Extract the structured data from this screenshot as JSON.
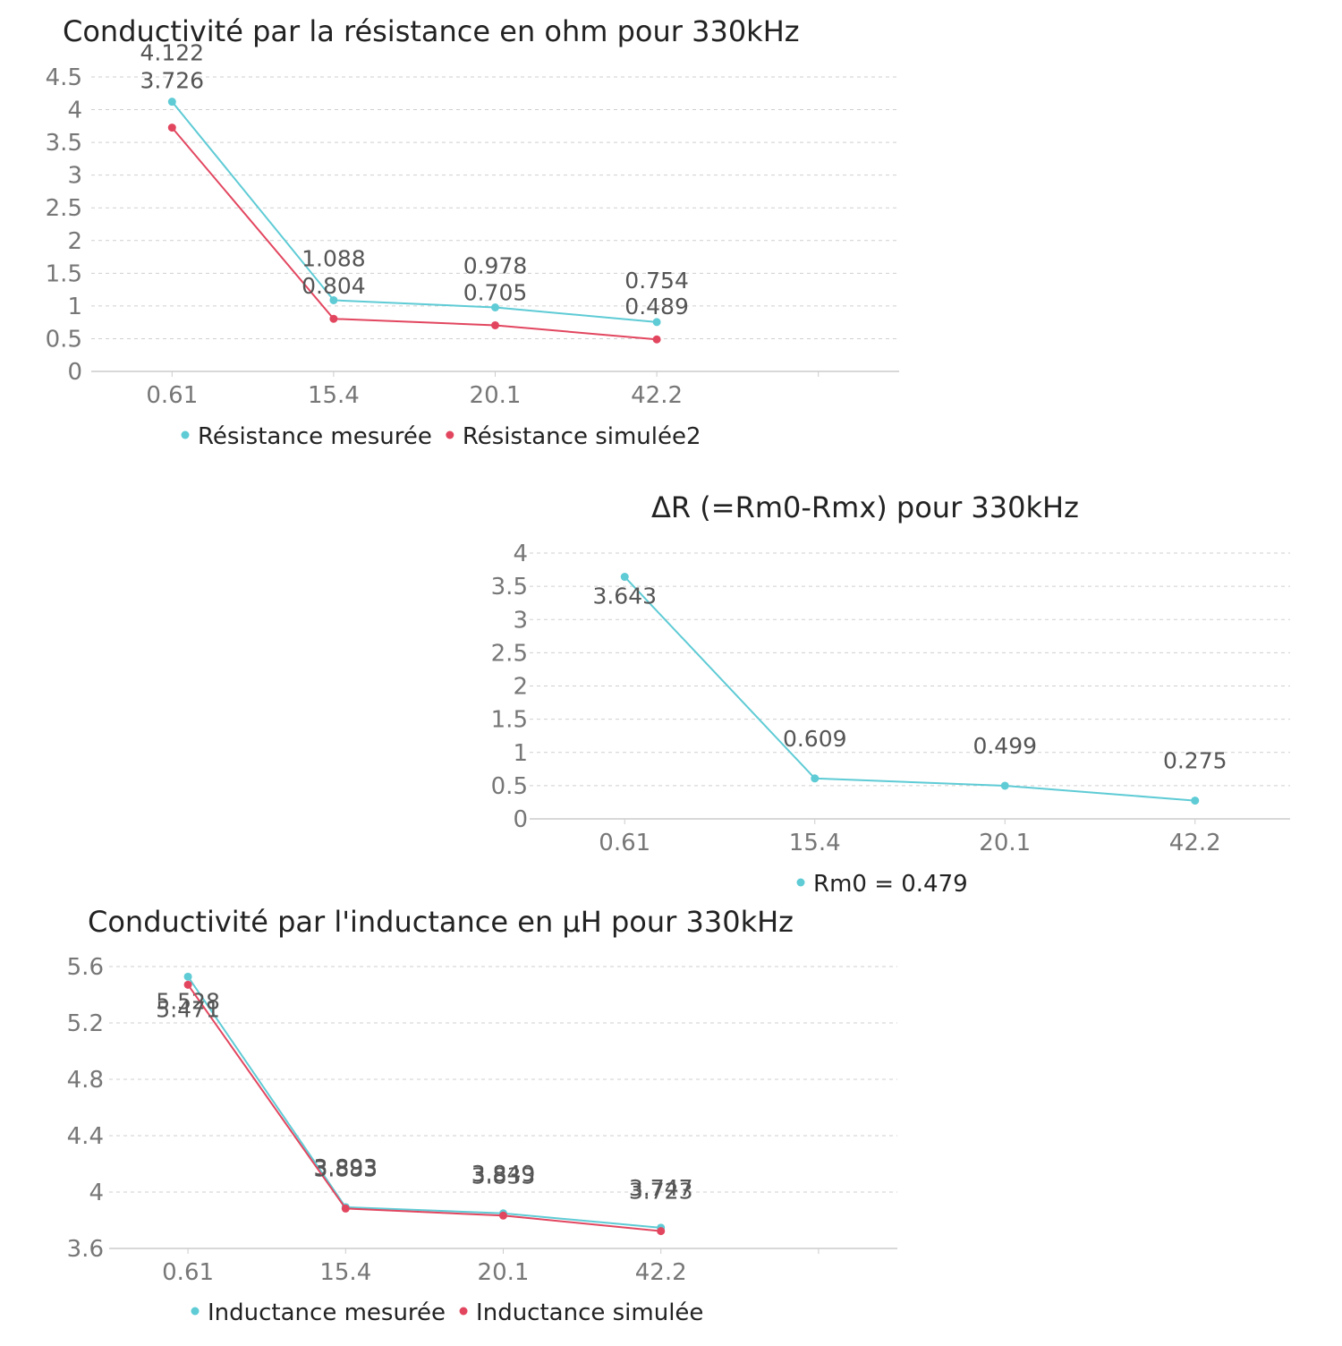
{
  "colors": {
    "measured": "#5ecbd5",
    "simulated": "#e2465f",
    "grid": "#cfcfcf",
    "axis_text": "#777777",
    "label_text": "#555555"
  },
  "chart_data": [
    {
      "type": "line",
      "title": "Conductivité par la résistance en ohm pour 330kHz",
      "categories": [
        "0.61",
        "15.4",
        "20.1",
        "42.2"
      ],
      "ylim": [
        0,
        4.5
      ],
      "yticks": [
        "0",
        "0.5",
        "1",
        "1.5",
        "2",
        "2.5",
        "3",
        "3.5",
        "4",
        "4.5"
      ],
      "grid": true,
      "legend": "bottom",
      "series": [
        {
          "name": "Résistance mesurée",
          "values": [
            4.122,
            1.088,
            0.978,
            0.754
          ]
        },
        {
          "name": "Résistance simulée2",
          "values": [
            3.726,
            0.804,
            0.705,
            0.489
          ]
        }
      ]
    },
    {
      "type": "line",
      "title": "ΔR (=Rm0-Rmx) pour 330kHz",
      "categories": [
        "0.61",
        "15.4",
        "20.1",
        "42.2"
      ],
      "ylim": [
        0,
        4
      ],
      "yticks": [
        "0",
        "0.5",
        "1",
        "1.5",
        "2",
        "2.5",
        "3",
        "3.5",
        "4"
      ],
      "grid": true,
      "legend": "bottom",
      "series": [
        {
          "name": "Rm0 = 0.479",
          "values": [
            3.643,
            0.609,
            0.499,
            0.275
          ]
        }
      ]
    },
    {
      "type": "line",
      "title": "Conductivité par l'inductance en µH pour 330kHz",
      "categories": [
        "0.61",
        "15.4",
        "20.1",
        "42.2"
      ],
      "ylim": [
        3.6,
        5.6
      ],
      "yticks": [
        "3.6",
        "4",
        "4.4",
        "4.8",
        "5.2",
        "5.6"
      ],
      "grid": true,
      "legend": "bottom",
      "series": [
        {
          "name": "Inductance mesurée",
          "values": [
            5.528,
            3.893,
            3.849,
            3.747
          ]
        },
        {
          "name": "Inductance simulée",
          "values": [
            5.471,
            3.883,
            3.833,
            3.723
          ]
        }
      ]
    }
  ]
}
